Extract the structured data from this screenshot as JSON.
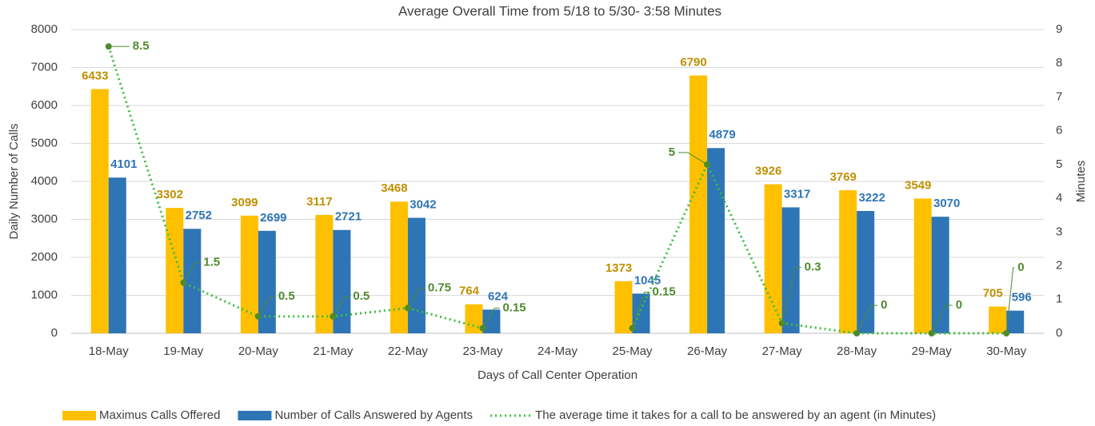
{
  "chart_data": {
    "type": "bar",
    "title": "Average Overall Time from 5/18 to 5/30- 3:58 Minutes",
    "x_label": "Days of Call Center Operation",
    "y_label": "Daily Number of Calls",
    "y2_label": "Minutes",
    "categories": [
      "18-May",
      "19-May",
      "20-May",
      "21-May",
      "22-May",
      "23-May",
      "24-May",
      "25-May",
      "26-May",
      "27-May",
      "28-May",
      "29-May",
      "30-May"
    ],
    "series": [
      {
        "name": "Maximus Calls Offered",
        "color": "#FFC000",
        "label_color": "#C09000",
        "type": "bar",
        "values": [
          6433,
          3302,
          3099,
          3117,
          3468,
          764,
          null,
          1373,
          6790,
          3926,
          3769,
          3549,
          705
        ]
      },
      {
        "name": "Number of Calls Answered by Agents",
        "color": "#2E75B6",
        "label_color": "#2E75B6",
        "type": "bar",
        "values": [
          4101,
          2752,
          2699,
          2721,
          3042,
          624,
          null,
          1045,
          4879,
          3317,
          3222,
          3070,
          596
        ]
      },
      {
        "name": "The average time it takes for a call to be answered by an agent (in Minutes)",
        "color": "#3DBE3D",
        "label_color": "#4E8A2E",
        "type": "line",
        "axis": "y2",
        "values": [
          8.5,
          1.5,
          0.5,
          0.5,
          0.75,
          0.15,
          null,
          0.15,
          5,
          0.3,
          0,
          0,
          0
        ]
      }
    ],
    "ylim": [
      0,
      8000
    ],
    "yticks": [
      0,
      1000,
      2000,
      3000,
      4000,
      5000,
      6000,
      7000,
      8000
    ],
    "y2lim": [
      0,
      9
    ],
    "y2ticks": [
      0,
      1,
      2,
      3,
      4,
      5,
      6,
      7,
      8,
      9
    ],
    "grid": true,
    "legend": "bottom"
  }
}
